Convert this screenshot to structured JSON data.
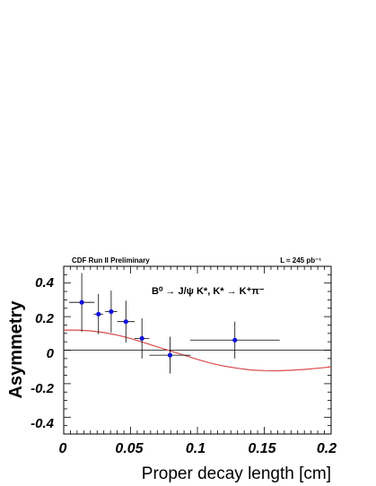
{
  "header": {
    "left": "CDF Run II Preliminary",
    "right": "L ≈ 245 pb⁻¹"
  },
  "annotation": "B⁰ → J/ψ K*, K* → K⁺π⁻",
  "chart_data": {
    "type": "scatter",
    "xlabel": "Proper decay length [cm]",
    "ylabel": "Asymmetry",
    "xlim": [
      0,
      0.2
    ],
    "ylim": [
      -0.5,
      0.5
    ],
    "x_ticks": [
      "0",
      "0.05",
      "0.1",
      "0.15",
      "0.2"
    ],
    "y_ticks": [
      "-0.4",
      "-0.2",
      "0",
      "0.2",
      "0.4"
    ],
    "points": [
      {
        "x": 0.0135,
        "xerr": 0.0095,
        "y": 0.285,
        "yerr": 0.175
      },
      {
        "x": 0.026,
        "xerr": 0.0035,
        "y": 0.215,
        "yerr": 0.12
      },
      {
        "x": 0.0355,
        "xerr": 0.0045,
        "y": 0.23,
        "yerr": 0.125
      },
      {
        "x": 0.0465,
        "xerr": 0.0065,
        "y": 0.17,
        "yerr": 0.125
      },
      {
        "x": 0.0585,
        "xerr": 0.0055,
        "y": 0.07,
        "yerr": 0.12
      },
      {
        "x": 0.0795,
        "xerr": 0.0155,
        "y": -0.03,
        "yerr": 0.11
      },
      {
        "x": 0.128,
        "xerr": 0.0335,
        "y": 0.06,
        "yerr": 0.11
      }
    ],
    "fit_curve": {
      "color": "#d94a4a",
      "x": [
        0,
        0.01,
        0.02,
        0.03,
        0.04,
        0.05,
        0.06,
        0.07,
        0.08,
        0.09,
        0.1,
        0.11,
        0.12,
        0.13,
        0.14,
        0.15,
        0.16,
        0.17,
        0.18,
        0.19,
        0.2
      ],
      "y": [
        0.12,
        0.12,
        0.115,
        0.105,
        0.09,
        0.07,
        0.045,
        0.02,
        -0.005,
        -0.03,
        -0.055,
        -0.078,
        -0.095,
        -0.108,
        -0.118,
        -0.122,
        -0.123,
        -0.12,
        -0.115,
        -0.108,
        -0.1
      ]
    },
    "zero_line": true,
    "grid": false,
    "marker_color": "#1010e0"
  }
}
